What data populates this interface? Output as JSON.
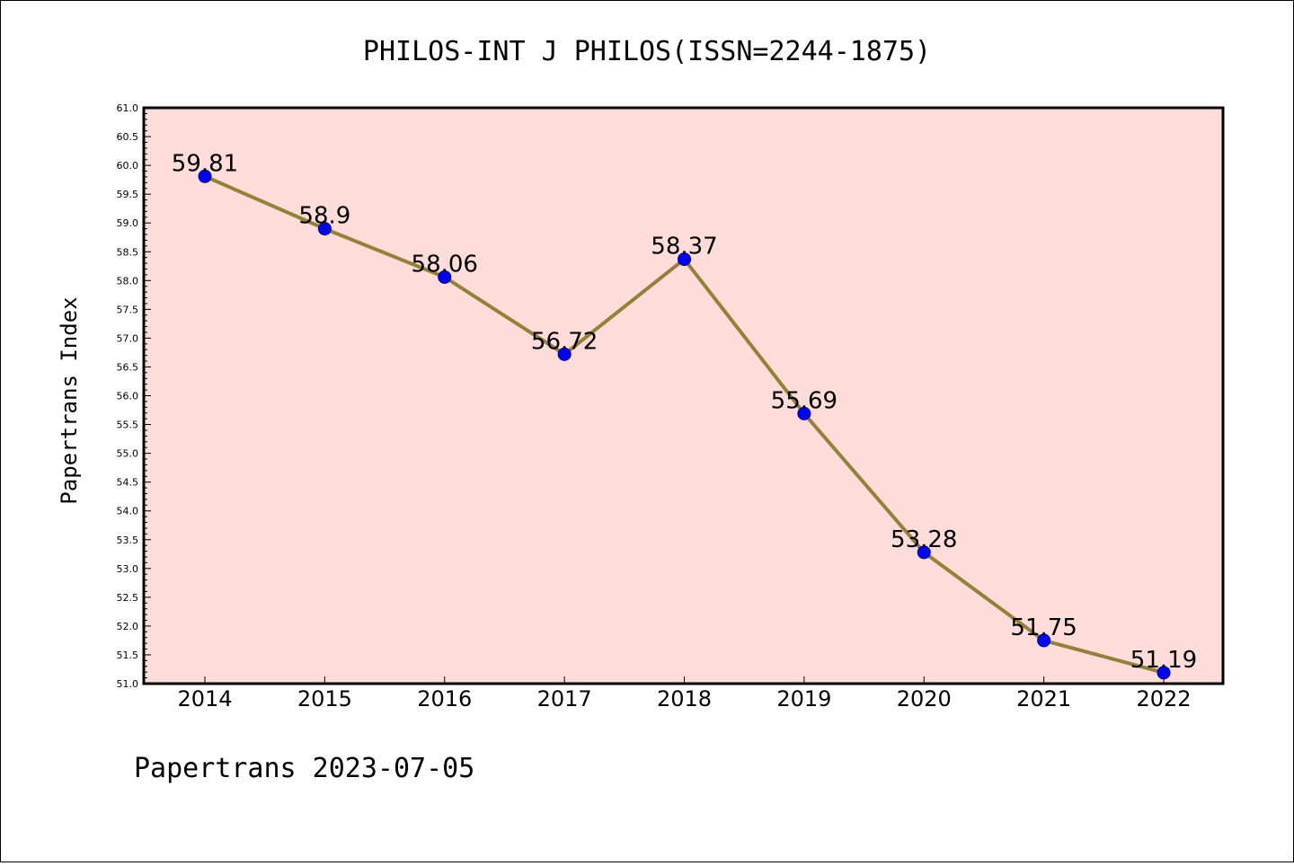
{
  "chart_data": {
    "type": "line",
    "title": "PHILOS-INT J PHILOS(ISSN=2244-1875)",
    "xlabel": "",
    "ylabel": "Papertrans Index",
    "footer": "Papertrans 2023-07-05",
    "x": [
      "2014",
      "2015",
      "2016",
      "2017",
      "2018",
      "2019",
      "2020",
      "2021",
      "2022"
    ],
    "series": [
      {
        "values": [
          59.81,
          58.9,
          58.06,
          56.72,
          58.37,
          55.69,
          53.28,
          51.75,
          51.19
        ]
      }
    ],
    "data_labels": [
      "59.81",
      "58.9",
      "58.06",
      "56.72",
      "58.37",
      "55.69",
      "53.28",
      "51.75",
      "51.19"
    ],
    "ylim": [
      51.0,
      61.0
    ],
    "yticks": [
      "51.0",
      "51.5",
      "52.0",
      "52.5",
      "53.0",
      "53.5",
      "54.0",
      "54.5",
      "55.0",
      "55.5",
      "56.0",
      "56.5",
      "57.0",
      "57.5",
      "58.0",
      "58.5",
      "59.0",
      "59.5",
      "60.0",
      "60.5",
      "61.0"
    ],
    "grid": false,
    "colors": {
      "plot_background": "#fddcd9",
      "line": "#928139",
      "marker_fill": "#0000ff",
      "marker_edge": "#000080"
    }
  }
}
